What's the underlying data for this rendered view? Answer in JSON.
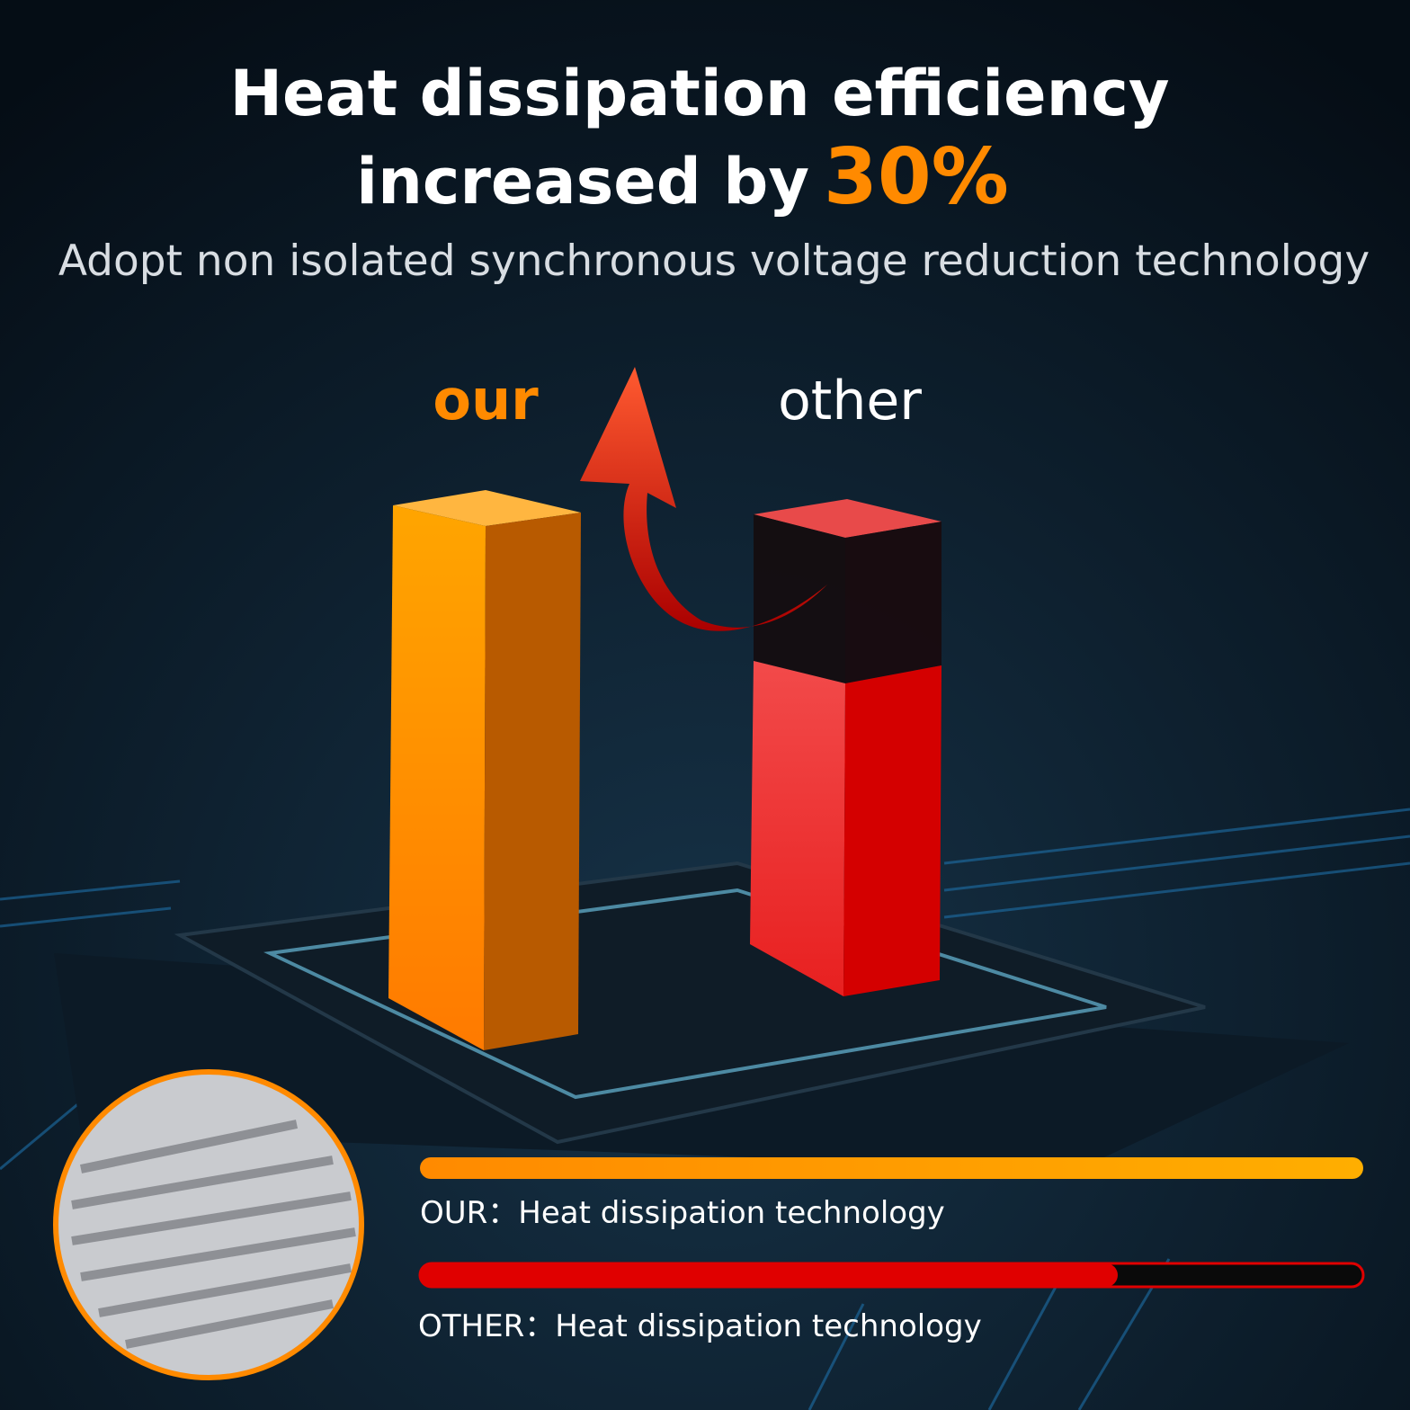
{
  "header": {
    "title_line1": "Heat dissipation efficiency",
    "title_line2": "increased by",
    "highlight": "30%",
    "subtitle": "Adopt non isolated synchronous voltage reduction technology"
  },
  "columns": {
    "left": "our",
    "right": "other"
  },
  "comparison": {
    "our_label": "OUR：Heat dissipation technology",
    "other_label": "OTHER：Heat dissipation technology"
  }
}
